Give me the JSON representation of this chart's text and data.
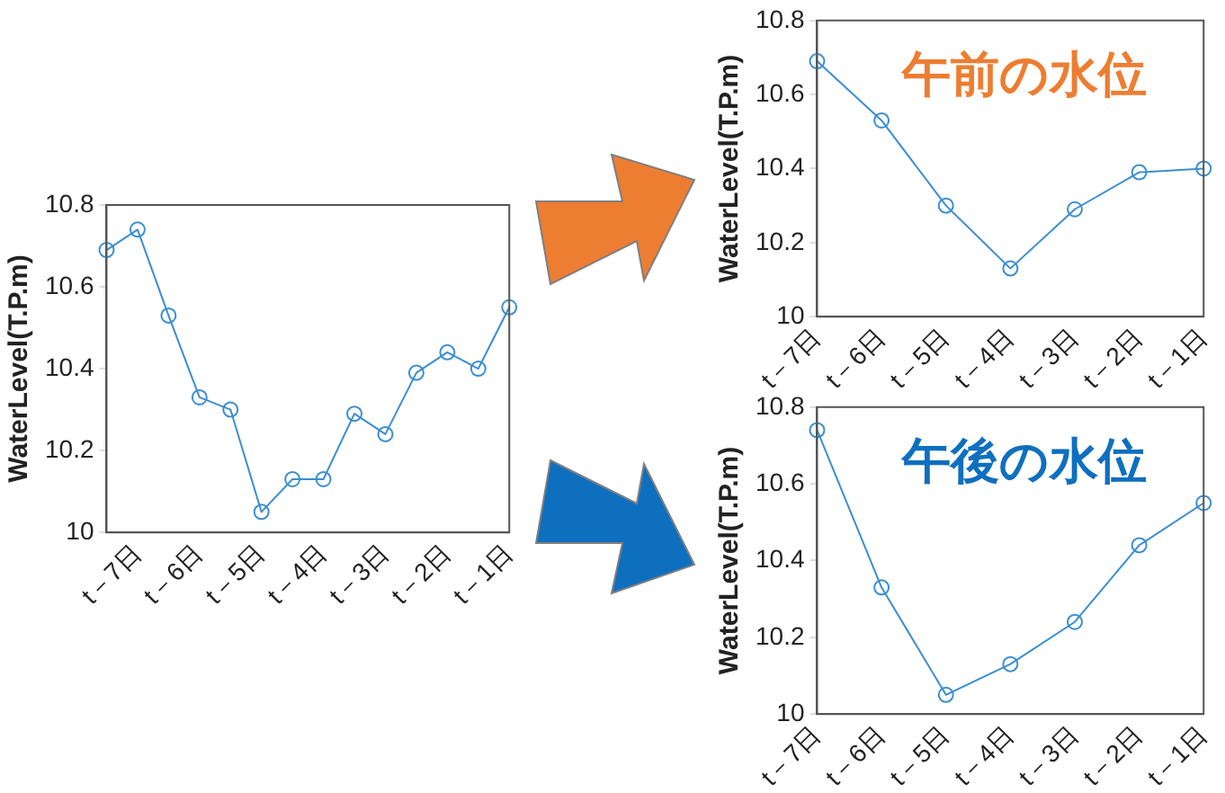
{
  "chart_data": [
    {
      "type": "line",
      "ylabel": "WaterLevel(T.P.m)",
      "categories": [
        null,
        "t－7日",
        null,
        "t－6日",
        null,
        "t－5日",
        null,
        "t－4日",
        null,
        "t－3日",
        null,
        "t－2日",
        null,
        "t－1日"
      ],
      "series": [
        {
          "color": "#3b8ed0",
          "values": [
            10.69,
            10.74,
            10.53,
            10.33,
            10.3,
            10.05,
            10.13,
            10.13,
            10.29,
            10.24,
            10.39,
            10.44,
            10.4,
            10.55
          ]
        }
      ],
      "ylim": [
        10,
        10.8
      ],
      "yticks": [
        10,
        10.2,
        10.4,
        10.6,
        10.8
      ],
      "grid": false,
      "legend": false,
      "marker": "circle",
      "line_style": "solid"
    },
    {
      "type": "line",
      "title": "午前の水位",
      "ylabel": "WaterLevel(T.P.m)",
      "categories": [
        "t－7日",
        "t－6日",
        "t－5日",
        "t－4日",
        "t－3日",
        "t－2日",
        "t－1日"
      ],
      "series": [
        {
          "color": "#3b8ed0",
          "values": [
            10.69,
            10.53,
            10.3,
            10.13,
            10.29,
            10.39,
            10.4
          ]
        }
      ],
      "ylim": [
        10,
        10.8
      ],
      "yticks": [
        10,
        10.2,
        10.4,
        10.6,
        10.8
      ],
      "grid": false,
      "legend": false,
      "marker": "circle",
      "line_style": "solid"
    },
    {
      "type": "line",
      "title": "午後の水位",
      "ylabel": "WaterLevel(T.P.m)",
      "categories": [
        "t－7日",
        "t－6日",
        "t－5日",
        "t－4日",
        "t－3日",
        "t－2日",
        "t－1日"
      ],
      "series": [
        {
          "color": "#3b8ed0",
          "values": [
            10.74,
            10.33,
            10.05,
            10.13,
            10.24,
            10.44,
            10.55
          ]
        }
      ],
      "ylim": [
        10,
        10.8
      ],
      "yticks": [
        10,
        10.2,
        10.4,
        10.6,
        10.8
      ],
      "grid": false,
      "legend": false,
      "marker": "circle",
      "line_style": "solid"
    }
  ]
}
